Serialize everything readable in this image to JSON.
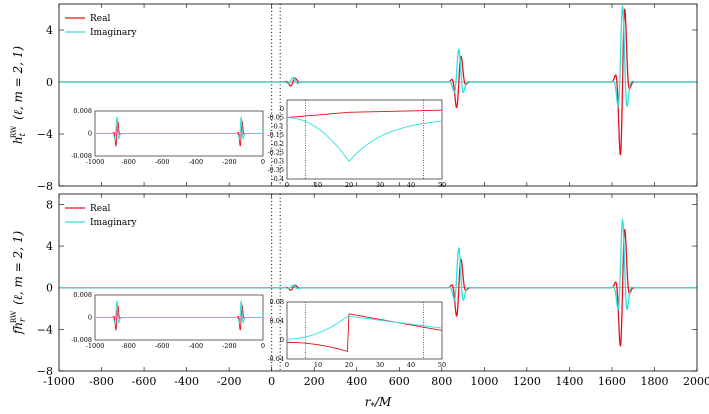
{
  "chart_data": [
    {
      "type": "line",
      "panel": "top",
      "ylabel": "h_t^RW (ℓ, m = 2, 1)",
      "ylabel_main": "h",
      "ylabel_sub": "t",
      "ylabel_sup": "RW",
      "ylabel_rest": "(ℓ, m = 2, 1)",
      "xlim": [
        -1000,
        2000
      ],
      "ylim": [
        -8,
        6
      ],
      "yticks": [
        4,
        0,
        -4,
        -8
      ],
      "ytick_labels": [
        "4",
        "0",
        "−4",
        "−8"
      ],
      "legend": [
        "Real",
        "Imaginary"
      ],
      "legend_position": "top-left",
      "vlines": [
        0,
        40
      ],
      "series_colors": [
        "#e8101a",
        "#2ee0dc"
      ],
      "series": [
        {
          "name": "Real",
          "pulses": [
            {
              "x": 100,
              "amp": 0.4
            },
            {
              "x": 880,
              "amp": 2.6
            },
            {
              "x": 1650,
              "amp": 7.4
            }
          ]
        },
        {
          "name": "Imaginary",
          "pulses": [
            {
              "x": 100,
              "amp": 0.35
            },
            {
              "x": 880,
              "amp": 2.5
            },
            {
              "x": 1650,
              "amp": 5.8
            }
          ]
        }
      ],
      "inset_left": {
        "xlim": [
          -1000,
          0
        ],
        "ylim": [
          -0.008,
          0.008
        ],
        "xticks": [
          "-1000",
          "-800",
          "-600",
          "-400",
          "-200",
          "0"
        ],
        "yticks": [
          "0.008",
          "0",
          "-0.008"
        ]
      },
      "inset_right": {
        "xlim": [
          0,
          50
        ],
        "ylim": [
          -0.4,
          0.05
        ],
        "xticks": [
          "0",
          "10",
          "20",
          "30",
          "40",
          "50"
        ],
        "yticks": [
          "0",
          "-0.05",
          "-0.1",
          "-0.15",
          "-0.2",
          "-0.25",
          "-0.3",
          "-0.35",
          "-0.4"
        ]
      }
    },
    {
      "type": "line",
      "panel": "bottom",
      "ylabel": "f h_r^RW (ℓ, m = 2, 1)",
      "ylabel_main": "fh",
      "ylabel_sub": "r",
      "ylabel_sup": "RW",
      "ylabel_rest": "(ℓ, m = 2, 1)",
      "xlabel": "r_*/M",
      "xlim": [
        -1000,
        2000
      ],
      "ylim": [
        -8,
        9
      ],
      "xticks": [
        "-1000",
        "-800",
        "-600",
        "-400",
        "-200",
        "0",
        "200",
        "400",
        "600",
        "800",
        "1000",
        "1200",
        "1400",
        "1600",
        "1800",
        "2000"
      ],
      "yticks": [
        8,
        4,
        0,
        -4,
        -8
      ],
      "ytick_labels": [
        "8",
        "4",
        "0",
        "−4",
        "−8"
      ],
      "legend": [
        "Real",
        "Imaginary"
      ],
      "legend_position": "top-left",
      "vlines": [
        0,
        40
      ],
      "series": [
        {
          "name": "Real",
          "pulses": [
            {
              "x": 100,
              "amp": 0.3
            },
            {
              "x": 880,
              "amp": 3.6
            },
            {
              "x": 1650,
              "amp": 7.4
            }
          ]
        },
        {
          "name": "Imaginary",
          "pulses": [
            {
              "x": 100,
              "amp": 0.25
            },
            {
              "x": 880,
              "amp": 3.8
            },
            {
              "x": 1650,
              "amp": 6.5
            }
          ]
        }
      ],
      "inset_left": {
        "xlim": [
          -1000,
          0
        ],
        "ylim": [
          -0.008,
          0.008
        ],
        "xticks": [
          "-1000",
          "-800",
          "-600",
          "-400",
          "-200",
          "0"
        ],
        "yticks": [
          "0.008",
          "0",
          "-0.008"
        ]
      },
      "inset_right": {
        "xlim": [
          0,
          50
        ],
        "ylim": [
          -0.04,
          0.08
        ],
        "xticks": [
          "0",
          "10",
          "20",
          "30",
          "40",
          "50"
        ],
        "yticks": [
          "0.08",
          "0.04",
          "0",
          "-0.04"
        ]
      }
    }
  ]
}
